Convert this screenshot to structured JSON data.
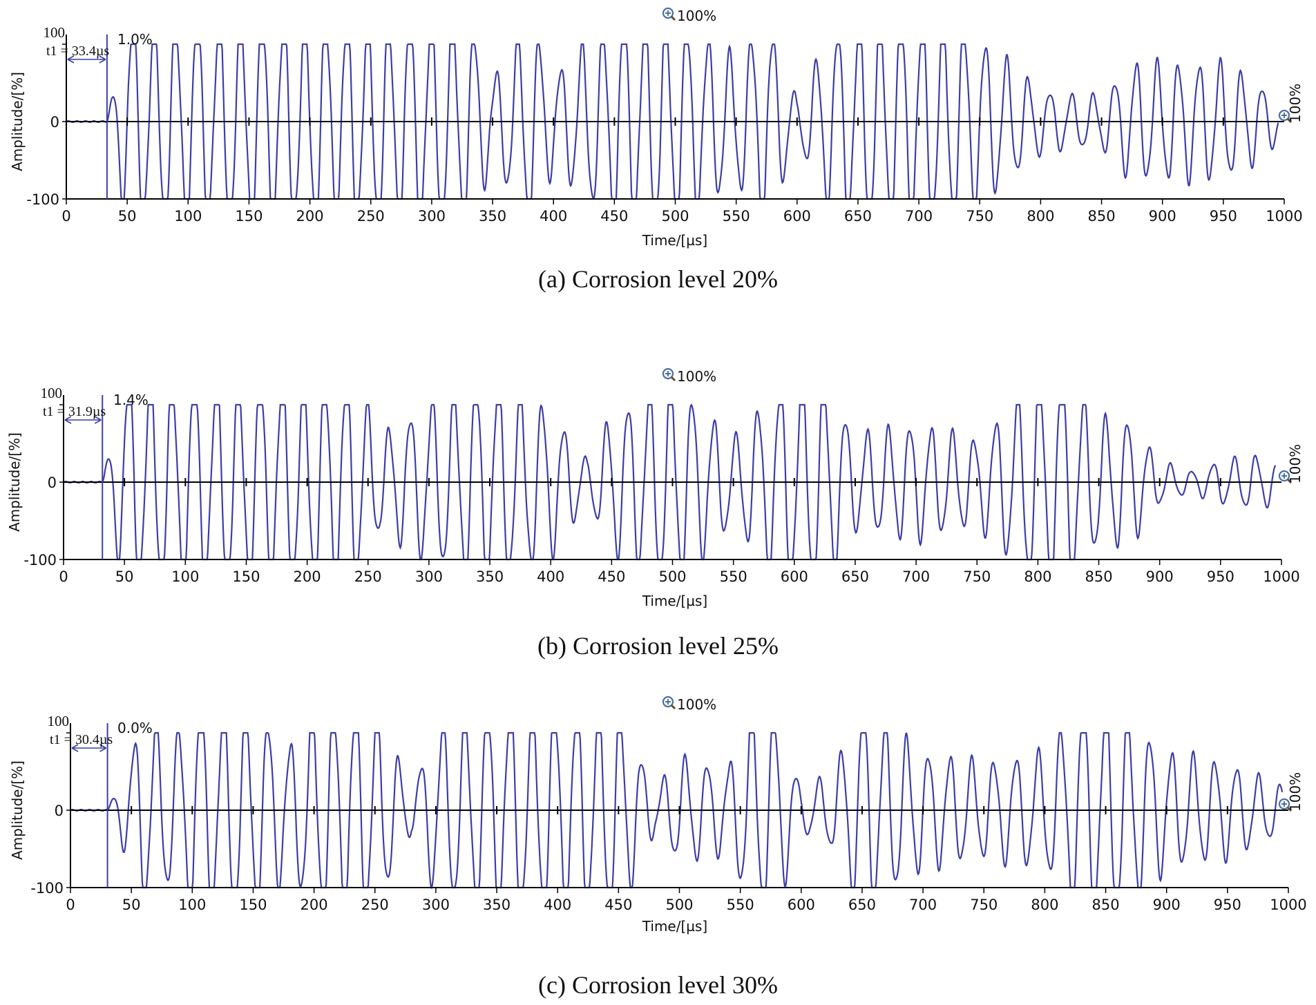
{
  "panels": [
    {
      "caption": "(a) Corrosion level 20%",
      "marker_label": "t1 = 33.4µs",
      "t1": 33.4,
      "cursor_value": "1.0%",
      "zoom_top": "100%",
      "zoom_right": "100%"
    },
    {
      "caption": "(b) Corrosion level 25%",
      "marker_label": "t1 = 31.9µs",
      "t1": 31.9,
      "cursor_value": "1.4%",
      "zoom_top": "100%",
      "zoom_right": "100%"
    },
    {
      "caption": "(c) Corrosion level 30%",
      "marker_label": "t1 = 30.4µs",
      "t1": 30.4,
      "cursor_value": "0.0%",
      "zoom_top": "100%",
      "zoom_right": "100%"
    }
  ],
  "colors": {
    "signal": "#3d3da8",
    "axis": "#000000",
    "zoom_icon": "#4a6fa5"
  },
  "icons": {
    "zoom": "magnifier-plus-icon"
  },
  "chart_data": [
    {
      "type": "line",
      "xlabel": "Time/[µs]",
      "ylabel": "Amplitude/[%]",
      "xlim": [
        0,
        1000
      ],
      "ylim": [
        -100,
        100
      ],
      "xticks": [
        0,
        50,
        100,
        150,
        200,
        250,
        300,
        350,
        400,
        450,
        500,
        550,
        600,
        650,
        700,
        750,
        800,
        850,
        900,
        950,
        1000
      ],
      "yticks": [
        -100,
        0,
        100
      ],
      "grid": false,
      "series": [
        {
          "x": [
            0,
            33.4,
            50,
            100,
            150,
            200,
            250,
            300,
            330,
            350,
            380,
            400,
            450,
            500,
            550,
            575,
            600,
            625,
            650,
            675,
            700,
            725,
            750,
            775,
            800,
            825,
            850,
            875,
            900,
            925,
            950,
            975,
            1000
          ],
          "y": [
            0,
            0,
            100,
            100,
            100,
            100,
            100,
            100,
            100,
            40,
            100,
            45,
            100,
            100,
            60,
            100,
            20,
            80,
            100,
            100,
            100,
            100,
            80,
            55,
            30,
            25,
            25,
            55,
            55,
            55,
            55,
            40,
            15
          ]
        }
      ]
    },
    {
      "type": "line",
      "xlabel": "Time/[µs]",
      "ylabel": "Amplitude/[%]",
      "xlim": [
        0,
        1000
      ],
      "ylim": [
        -100,
        100
      ],
      "xticks": [
        0,
        50,
        100,
        150,
        200,
        250,
        300,
        350,
        400,
        450,
        500,
        550,
        600,
        650,
        700,
        750,
        800,
        850,
        900,
        950,
        1000
      ],
      "yticks": [
        -100,
        0,
        100
      ],
      "grid": false,
      "series": [
        {
          "x": [
            0,
            31.9,
            50,
            100,
            150,
            200,
            240,
            260,
            300,
            350,
            400,
            430,
            450,
            500,
            550,
            580,
            600,
            625,
            650,
            700,
            750,
            800,
            825,
            850,
            875,
            900,
            925,
            950,
            975,
            1000
          ],
          "y": [
            0,
            0,
            100,
            100,
            100,
            100,
            100,
            45,
            75,
            100,
            70,
            20,
            65,
            100,
            40,
            85,
            100,
            100,
            45,
            55,
            40,
            100,
            100,
            60,
            60,
            20,
            10,
            20,
            25,
            20
          ]
        }
      ]
    },
    {
      "type": "line",
      "xlabel": "Time/[µs]",
      "ylabel": "Amplitude/[%]",
      "xlim": [
        0,
        1000
      ],
      "ylim": [
        -100,
        100
      ],
      "xticks": [
        0,
        50,
        100,
        150,
        200,
        250,
        300,
        350,
        400,
        450,
        500,
        550,
        600,
        650,
        700,
        750,
        800,
        850,
        900,
        950,
        1000
      ],
      "yticks": [
        -100,
        0,
        100
      ],
      "grid": false,
      "series": [
        {
          "x": [
            0,
            30.4,
            45,
            60,
            85,
            100,
            150,
            180,
            200,
            250,
            280,
            300,
            350,
            400,
            450,
            480,
            500,
            540,
            560,
            580,
            600,
            625,
            650,
            700,
            750,
            800,
            830,
            860,
            900,
            950,
            1000
          ],
          "y": [
            0,
            0,
            40,
            90,
            70,
            100,
            100,
            60,
            100,
            100,
            20,
            80,
            100,
            100,
            100,
            20,
            50,
            40,
            100,
            90,
            20,
            35,
            100,
            55,
            45,
            55,
            100,
            100,
            55,
            45,
            20
          ]
        }
      ]
    }
  ]
}
